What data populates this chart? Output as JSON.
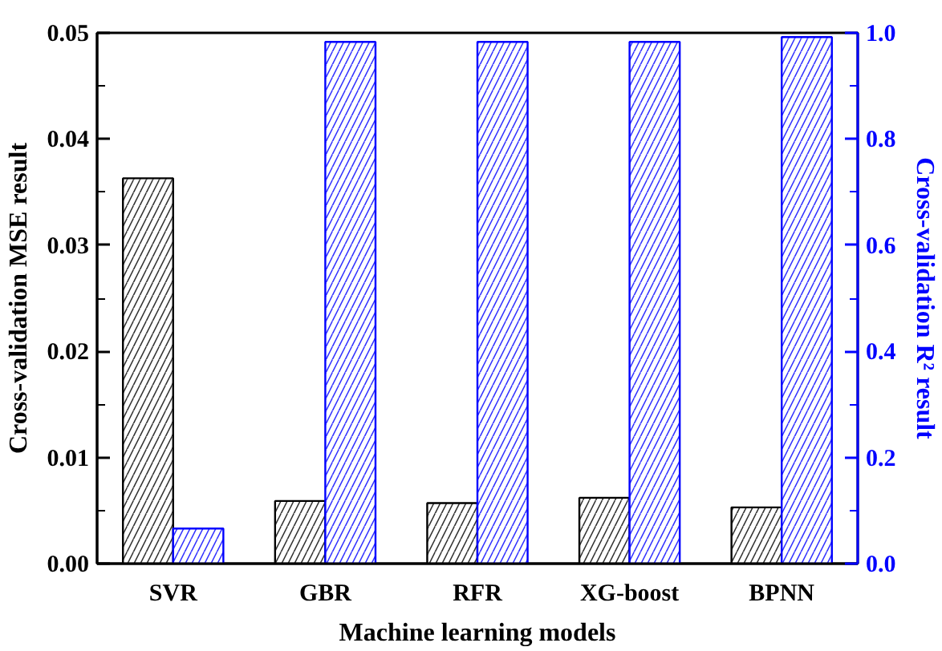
{
  "chart_data": {
    "type": "bar",
    "xlabel": "Machine learning models",
    "ylabel": "Cross-validation MSE result",
    "y2label": "Cross-validation R² result",
    "categories": [
      "SVR",
      "GBR",
      "RFR",
      "XG-boost",
      "BPNN"
    ],
    "series": [
      {
        "color": "#000000",
        "values": [
          0.0363,
          0.0059,
          0.0057,
          0.0062,
          0.0053
        ]
      },
      {
        "color": "#0000ff",
        "axis": "y2",
        "values": [
          0.066,
          0.983,
          0.983,
          0.983,
          0.992
        ]
      }
    ],
    "ylim": [
      0,
      0.05
    ],
    "yticks": [
      {
        "value": 0,
        "label": "0.00"
      },
      {
        "value": 0.01,
        "label": "0.01"
      },
      {
        "value": 0.02,
        "label": "0.02"
      },
      {
        "value": 0.03,
        "label": "0.03"
      },
      {
        "value": 0.04,
        "label": "0.04"
      },
      {
        "value": 0.05,
        "label": "0.05"
      }
    ],
    "y2lim": [
      0,
      1.0
    ],
    "y2ticks": [
      {
        "value": 0,
        "label": "0.0"
      },
      {
        "value": 0.2,
        "label": "0.2"
      },
      {
        "value": 0.4,
        "label": "0.4"
      },
      {
        "value": 0.6,
        "label": "0.6"
      },
      {
        "value": 0.8,
        "label": "0.8"
      },
      {
        "value": 1.0,
        "label": "1.0"
      }
    ],
    "grid": false
  }
}
